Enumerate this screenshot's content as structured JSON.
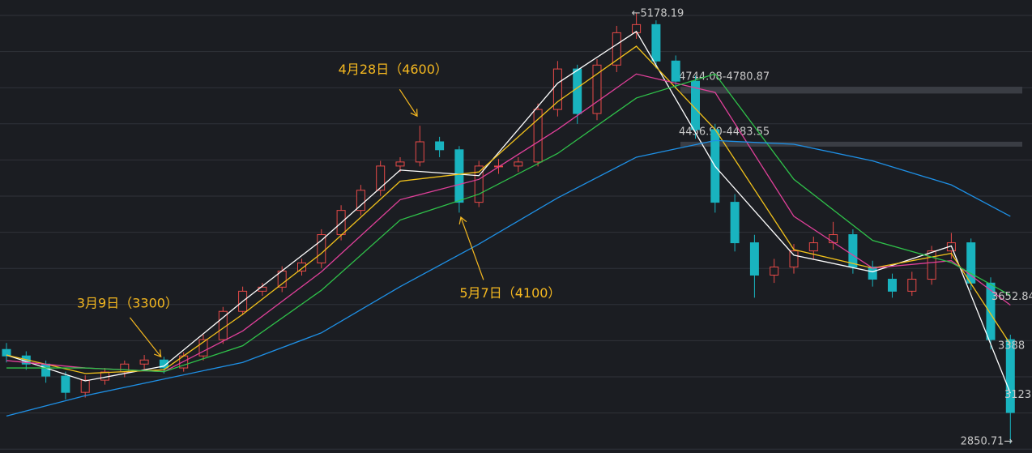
{
  "chart_data": {
    "type": "candlestick",
    "up_color": "#e84a48",
    "down_color": "#19b3bf",
    "ylim": [
      2800,
      5250
    ],
    "grid": true,
    "series": [
      {
        "open": [
          3360,
          3325,
          3281,
          3216,
          3128,
          3194,
          3238,
          3281,
          3303,
          3260,
          3325,
          3413,
          3566,
          3675,
          3697,
          3784,
          3828,
          3981,
          4112,
          4221,
          4352,
          4374,
          4483,
          4440,
          4156,
          4352,
          4352,
          4374,
          4658,
          4877,
          4636,
          4898,
          5073,
          5117,
          4920,
          4811,
          4549,
          4156,
          3937,
          3762,
          3806,
          3893,
          3937,
          3981,
          3806,
          3740,
          3675,
          3740,
          3893,
          3937,
          3719,
          3413
        ],
        "high": [
          3395,
          3350,
          3300,
          3240,
          3220,
          3260,
          3300,
          3330,
          3320,
          3345,
          3440,
          3590,
          3700,
          3720,
          3810,
          3850,
          4010,
          4140,
          4250,
          4380,
          4400,
          4570,
          4510,
          4460,
          4380,
          4390,
          4400,
          4690,
          4920,
          4900,
          4930,
          5110,
          5178.19,
          5140,
          4950,
          4840,
          4580,
          4200,
          3980,
          3850,
          3930,
          3970,
          4050,
          4010,
          3840,
          3770,
          3780,
          3920,
          3990,
          3960,
          3750,
          3440
        ],
        "low": [
          3290,
          3250,
          3180,
          3090,
          3100,
          3170,
          3210,
          3255,
          3230,
          3240,
          3300,
          3390,
          3545,
          3650,
          3670,
          3760,
          3800,
          3950,
          4085,
          4190,
          4320,
          4350,
          4400,
          4100,
          4130,
          4310,
          4320,
          4350,
          4620,
          4580,
          4600,
          4860,
          5040,
          4880,
          4770,
          4500,
          4100,
          3890,
          3640,
          3720,
          3770,
          3850,
          3900,
          3770,
          3700,
          3640,
          3650,
          3710,
          3850,
          3680,
          3360,
          2850.71
        ],
        "close": [
          3325,
          3281,
          3216,
          3128,
          3194,
          3238,
          3281,
          3303,
          3260,
          3325,
          3413,
          3566,
          3675,
          3697,
          3784,
          3828,
          3981,
          4112,
          4221,
          4352,
          4374,
          4483,
          4440,
          4156,
          4352,
          4352,
          4374,
          4658,
          4877,
          4636,
          4898,
          5073,
          5117,
          4920,
          4811,
          4549,
          4156,
          3937,
          3762,
          3806,
          3893,
          3937,
          3981,
          3806,
          3740,
          3675,
          3740,
          3893,
          3937,
          3719,
          3413,
          3019
        ]
      }
    ],
    "lines": [
      {
        "color": "#ffffff",
        "x": [
          0,
          4,
          8,
          12,
          16,
          20,
          24,
          28,
          32,
          36,
          40,
          44,
          48,
          51
        ],
        "values": [
          3330,
          3190,
          3270,
          3620,
          3950,
          4330,
          4300,
          4800,
          5080,
          4350,
          3870,
          3780,
          3920,
          3123
        ]
      },
      {
        "color": "#f2c21b",
        "x": [
          0,
          4,
          8,
          12,
          16,
          20,
          24,
          28,
          32,
          36,
          40,
          44,
          48,
          51
        ],
        "values": [
          3330,
          3230,
          3250,
          3550,
          3880,
          4270,
          4320,
          4700,
          5000,
          4550,
          3900,
          3800,
          3880,
          3388
        ]
      },
      {
        "color": "#e0409a",
        "x": [
          0,
          4,
          8,
          12,
          16,
          20,
          24,
          28,
          32,
          36,
          40,
          44,
          48,
          51
        ],
        "values": [
          3300,
          3260,
          3240,
          3460,
          3780,
          4170,
          4280,
          4550,
          4850,
          4750,
          4080,
          3800,
          3840,
          3600
        ]
      },
      {
        "color": "#2fc24a",
        "x": [
          0,
          4,
          8,
          12,
          16,
          20,
          24,
          28,
          32,
          36,
          40,
          44,
          48,
          51
        ],
        "values": [
          3260,
          3260,
          3240,
          3380,
          3680,
          4060,
          4200,
          4420,
          4720,
          4850,
          4280,
          3950,
          3830,
          3652.84
        ]
      },
      {
        "color": "#1e90e6",
        "x": [
          0,
          4,
          8,
          12,
          16,
          20,
          24,
          28,
          32,
          36,
          40,
          44,
          48,
          51
        ],
        "values": [
          3000,
          3110,
          3200,
          3290,
          3450,
          3700,
          3930,
          4180,
          4400,
          4490,
          4470,
          4380,
          4250,
          4080
        ]
      }
    ],
    "zones": [
      {
        "from": 4744.08,
        "to": 4780.87,
        "label": "4744.08-4780.87"
      },
      {
        "from": 4456.9,
        "to": 4483.55,
        "label": "4456.90-4483.55"
      }
    ],
    "annotations": [
      {
        "text": "4月28日（4600）",
        "x": 21,
        "value": 4600
      },
      {
        "text": "5月7日（4100）",
        "x": 23,
        "value": 4100
      },
      {
        "text": "3月9日（3300）",
        "x": 8,
        "value": 3300
      }
    ]
  }
}
